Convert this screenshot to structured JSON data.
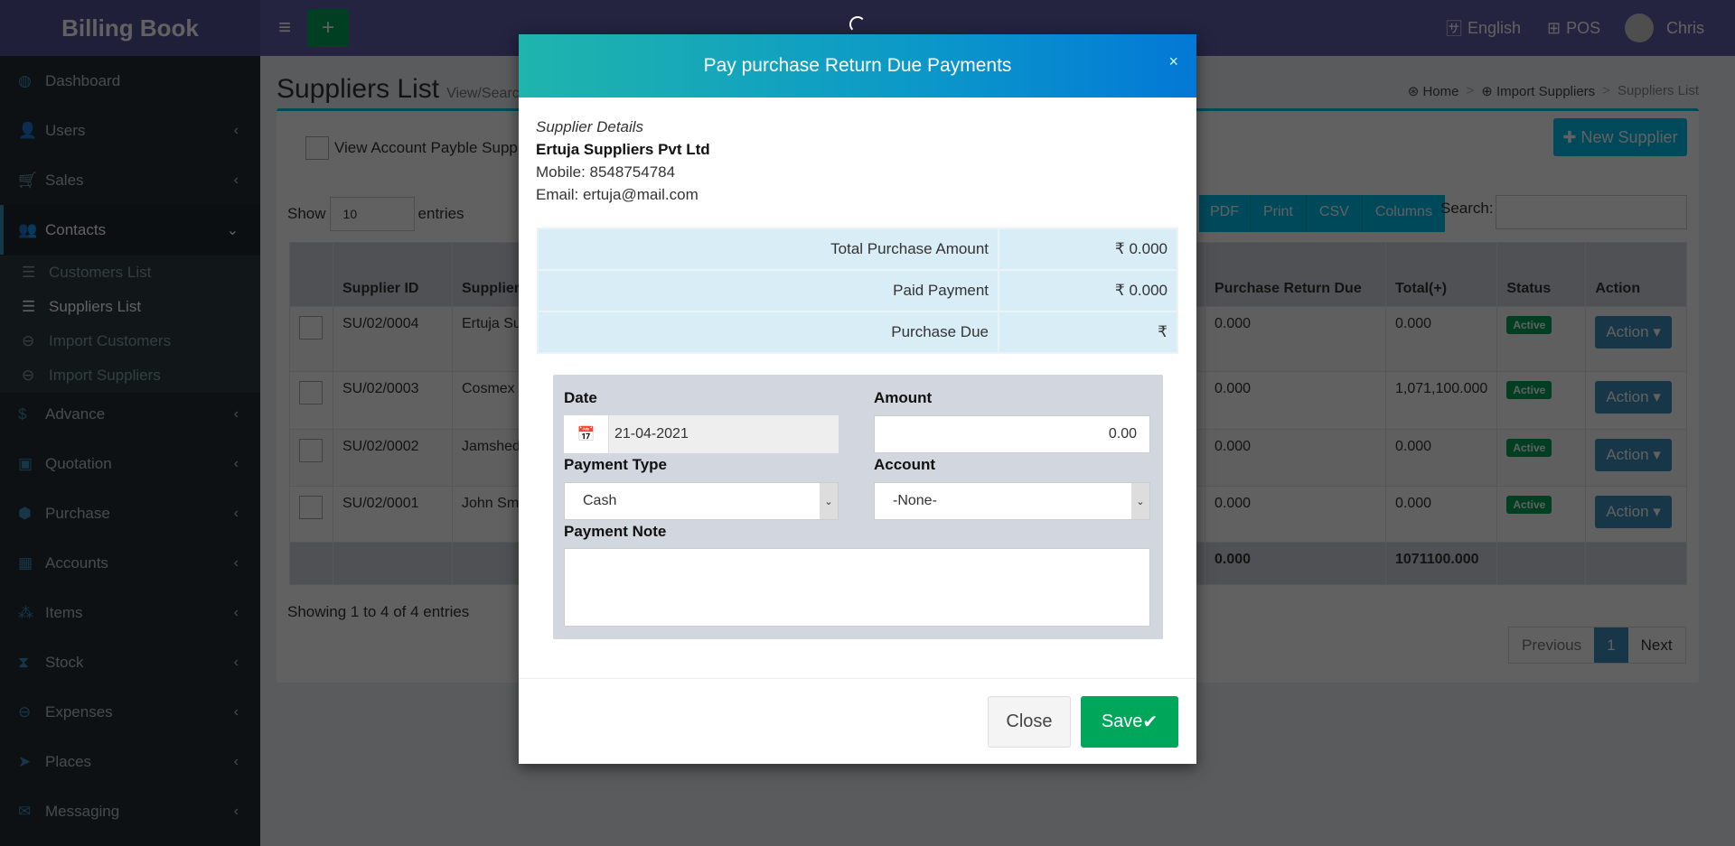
{
  "app": {
    "name": "Billing Book",
    "language": "English",
    "pos": "POS",
    "user": "Chris"
  },
  "sidebar": {
    "items": [
      {
        "label": "Dashboard",
        "icon": "dashboard-icon"
      },
      {
        "label": "Users",
        "icon": "users-icon"
      },
      {
        "label": "Sales",
        "icon": "cart-icon"
      },
      {
        "label": "Contacts",
        "icon": "contacts-icon"
      },
      {
        "label": "Advance",
        "icon": "dollar-icon"
      },
      {
        "label": "Quotation",
        "icon": "calendar-plus-icon"
      },
      {
        "label": "Purchase",
        "icon": "cube-icon"
      },
      {
        "label": "Accounts",
        "icon": "grid-icon"
      },
      {
        "label": "Items",
        "icon": "cubes-icon"
      },
      {
        "label": "Stock",
        "icon": "hourglass-icon"
      },
      {
        "label": "Expenses",
        "icon": "minus-circle-icon"
      },
      {
        "label": "Places",
        "icon": "paper-plane-icon"
      },
      {
        "label": "Messaging",
        "icon": "envelope-icon"
      }
    ],
    "contacts_sub": [
      {
        "label": "Customers List"
      },
      {
        "label": "Suppliers List"
      },
      {
        "label": "Import Customers"
      },
      {
        "label": "Import Suppliers"
      }
    ]
  },
  "page": {
    "title": "Suppliers List",
    "subtitle": "View/Search Suppliers",
    "breadcrumb": [
      "Home",
      "Import Suppliers",
      "Suppliers List"
    ],
    "view_payable": "View Account Payble Suppliers",
    "new_supplier": "New Supplier",
    "show": "Show",
    "entries_value": "10",
    "entries": "entries",
    "export_buttons": [
      "PDF",
      "Print",
      "CSV",
      "Columns"
    ],
    "search_label": "Search:",
    "search_value": "",
    "columns": [
      "Supplier ID",
      "Supplier Name",
      "Purchase Return Due",
      "Total(+)",
      "Status",
      "Action"
    ],
    "rows": [
      {
        "id": "SU/02/0004",
        "name": "Ertuja Suppliers Pvt Ltd",
        "return_due": "0.000",
        "total": "0.000",
        "status": "Active",
        "action": "Action"
      },
      {
        "id": "SU/02/0003",
        "name": "Cosmex S",
        "return_due": "0.000",
        "total": "1,071,100.000",
        "status": "Active",
        "action": "Action"
      },
      {
        "id": "SU/02/0002",
        "name": "Jamshed",
        "return_due": "0.000",
        "total": "0.000",
        "status": "Active",
        "action": "Action"
      },
      {
        "id": "SU/02/0001",
        "name": "John Sm",
        "return_due": "0.000",
        "total": "0.000",
        "status": "Active",
        "action": "Action"
      }
    ],
    "footer": {
      "return_due": "0.000",
      "total": "1071100.000"
    },
    "showing": "Showing 1 to 4 of 4 entries",
    "pagination": {
      "previous": "Previous",
      "current": "1",
      "next": "Next"
    }
  },
  "modal": {
    "title": "Pay purchase Return Due Payments",
    "close_x": "×",
    "supplier": {
      "heading": "Supplier Details",
      "name": "Ertuja Suppliers Pvt Ltd",
      "mobile": "Mobile: 8548754784",
      "email": "Email: ertuja@mail.com"
    },
    "summary": [
      {
        "label": "Total Purchase Amount",
        "value": "₹ 0.000"
      },
      {
        "label": "Paid Payment",
        "value": "₹ 0.000"
      },
      {
        "label": "Purchase Due",
        "value": "₹"
      }
    ],
    "form": {
      "date_label": "Date",
      "date_value": "21-04-2021",
      "amount_label": "Amount",
      "amount_value": "0.00",
      "payment_type_label": "Payment Type",
      "payment_type_value": "Cash",
      "account_label": "Account",
      "account_value": "-None-",
      "note_label": "Payment Note",
      "note_value": ""
    },
    "close": "Close",
    "save": "Save"
  },
  "colors": {
    "header": "#605ca8",
    "modal_gradient": [
      "#1fb5ac",
      "#0378d6"
    ],
    "save": "#00a65a",
    "active_badge": "#00a65a",
    "action": "#3c8dbc"
  }
}
